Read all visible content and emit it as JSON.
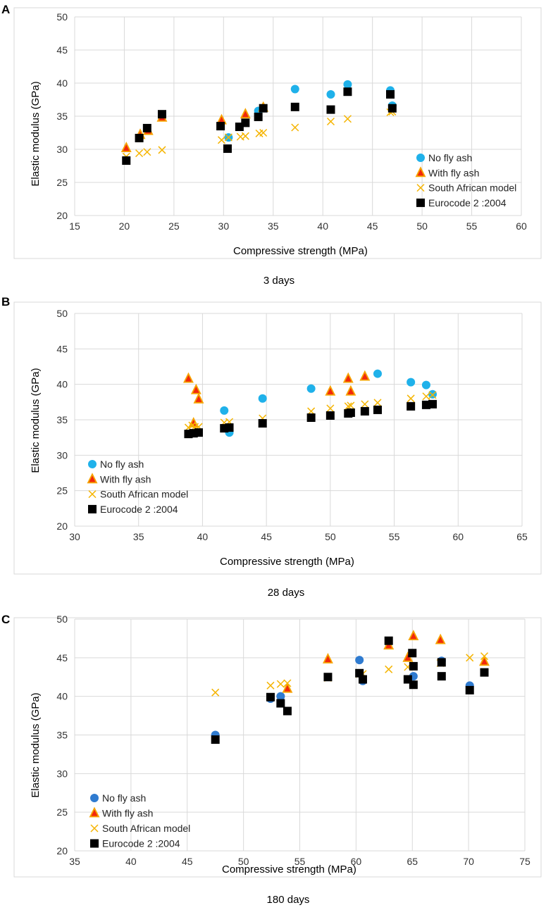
{
  "colors": {
    "no_fly_ash_A": "#1fb1ea",
    "no_fly_ash_B": "#1fb1ea",
    "no_fly_ash_C": "#2f7bd0",
    "with_fly_ash_fill": "#f2280c",
    "with_fly_ash_edge": "#f6a400",
    "south_african": "#f5b400",
    "eurocode": "#000000",
    "grid": "#d9d9d9",
    "frame": "#d9d9d9"
  },
  "chart_data": [
    {
      "panel_letter": "A",
      "type": "scatter",
      "caption": "3 days",
      "xlabel": "Compressive strength (MPa)",
      "ylabel": "Elastic modulus (GPa)",
      "xlim": [
        15,
        60
      ],
      "ylim": [
        20,
        50
      ],
      "xticks": [
        "15",
        "20",
        "25",
        "30",
        "35",
        "40",
        "45",
        "50",
        "55",
        "60"
      ],
      "yticks": [
        "20",
        "25",
        "30",
        "35",
        "40",
        "45",
        "50"
      ],
      "grid": true,
      "legend_position": "bottom-right",
      "series": [
        {
          "name": "No fly ash",
          "marker": "circle",
          "points": [
            [
              30.5,
              31.8
            ],
            [
              33.5,
              35.8
            ],
            [
              37.2,
              39.1
            ],
            [
              40.8,
              38.3
            ],
            [
              42.5,
              39.8
            ],
            [
              46.8,
              38.9
            ],
            [
              47.0,
              36.6
            ]
          ]
        },
        {
          "name": "With fly ash",
          "marker": "triangle",
          "points": [
            [
              20.2,
              30.2
            ],
            [
              21.6,
              32.2
            ],
            [
              22.4,
              32.8
            ],
            [
              23.8,
              34.8
            ],
            [
              29.8,
              34.4
            ],
            [
              32.2,
              35.3
            ],
            [
              34.0,
              36.3
            ]
          ]
        },
        {
          "name": "South African model",
          "marker": "x",
          "points": [
            [
              20.2,
              28.9
            ],
            [
              21.5,
              29.4
            ],
            [
              22.3,
              29.6
            ],
            [
              23.8,
              29.9
            ],
            [
              29.8,
              31.4
            ],
            [
              30.5,
              31.8
            ],
            [
              31.7,
              31.9
            ],
            [
              32.2,
              32.0
            ],
            [
              33.6,
              32.4
            ],
            [
              34.0,
              32.5
            ],
            [
              37.2,
              33.3
            ],
            [
              40.8,
              34.2
            ],
            [
              42.5,
              34.6
            ],
            [
              46.8,
              35.6
            ],
            [
              47.0,
              35.7
            ]
          ]
        },
        {
          "name": "Eurocode 2 :2004",
          "marker": "square",
          "points": [
            [
              20.2,
              28.3
            ],
            [
              21.5,
              31.7
            ],
            [
              22.3,
              33.2
            ],
            [
              23.8,
              35.3
            ],
            [
              29.7,
              33.5
            ],
            [
              30.4,
              30.1
            ],
            [
              31.6,
              33.4
            ],
            [
              32.2,
              34.0
            ],
            [
              33.5,
              34.9
            ],
            [
              34.0,
              36.2
            ],
            [
              37.2,
              36.4
            ],
            [
              40.8,
              36.0
            ],
            [
              42.5,
              38.7
            ],
            [
              46.8,
              38.3
            ],
            [
              47.0,
              36.2
            ]
          ]
        }
      ]
    },
    {
      "panel_letter": "B",
      "type": "scatter",
      "caption": "28 days",
      "xlabel": "Compressive strength (MPa)",
      "ylabel": "Elastic modulus (GPa)",
      "xlim": [
        30,
        65
      ],
      "ylim": [
        20,
        50
      ],
      "xticks": [
        "30",
        "35",
        "40",
        "45",
        "50",
        "55",
        "60",
        "65"
      ],
      "yticks": [
        "20",
        "25",
        "30",
        "35",
        "40",
        "45",
        "50"
      ],
      "grid": true,
      "legend_position": "bottom-left",
      "series": [
        {
          "name": "No fly ash",
          "marker": "circle",
          "points": [
            [
              41.7,
              36.3
            ],
            [
              42.1,
              33.2
            ],
            [
              44.7,
              38.0
            ],
            [
              48.5,
              39.4
            ],
            [
              53.7,
              41.5
            ],
            [
              56.3,
              40.3
            ],
            [
              57.5,
              39.9
            ],
            [
              58.0,
              38.6
            ]
          ]
        },
        {
          "name": "With fly ash",
          "marker": "triangle",
          "points": [
            [
              38.9,
              40.8
            ],
            [
              39.3,
              34.5
            ],
            [
              39.5,
              39.2
            ],
            [
              39.7,
              37.9
            ],
            [
              50.0,
              39.0
            ],
            [
              51.4,
              40.8
            ],
            [
              51.6,
              39.0
            ],
            [
              52.7,
              41.1
            ]
          ]
        },
        {
          "name": "South African model",
          "marker": "x",
          "points": [
            [
              38.9,
              33.9
            ],
            [
              39.2,
              34.2
            ],
            [
              39.4,
              34.0
            ],
            [
              39.7,
              34.0
            ],
            [
              41.7,
              34.6
            ],
            [
              42.1,
              34.7
            ],
            [
              44.7,
              35.2
            ],
            [
              48.5,
              36.2
            ],
            [
              50.0,
              36.6
            ],
            [
              51.4,
              36.9
            ],
            [
              51.6,
              37.0
            ],
            [
              52.7,
              37.2
            ],
            [
              53.7,
              37.4
            ],
            [
              56.3,
              38.0
            ],
            [
              57.5,
              38.3
            ],
            [
              58.0,
              38.5
            ]
          ]
        },
        {
          "name": "Eurocode 2 :2004",
          "marker": "square",
          "points": [
            [
              38.9,
              33.0
            ],
            [
              39.3,
              33.1
            ],
            [
              39.7,
              33.2
            ],
            [
              41.7,
              33.8
            ],
            [
              42.1,
              33.9
            ],
            [
              44.7,
              34.5
            ],
            [
              48.5,
              35.3
            ],
            [
              50.0,
              35.6
            ],
            [
              51.4,
              35.9
            ],
            [
              51.6,
              36.0
            ],
            [
              52.7,
              36.2
            ],
            [
              53.7,
              36.4
            ],
            [
              56.3,
              36.9
            ],
            [
              57.5,
              37.1
            ],
            [
              58.0,
              37.2
            ]
          ]
        }
      ]
    },
    {
      "panel_letter": "C",
      "type": "scatter",
      "caption": "180 days",
      "xlabel": "Compressive strength (MPa)",
      "ylabel": "Elastic modulus (GPa)",
      "xlim": [
        35,
        75
      ],
      "ylim": [
        20,
        50
      ],
      "xticks": [
        "35",
        "40",
        "45",
        "50",
        "55",
        "60",
        "65",
        "70",
        "75"
      ],
      "yticks": [
        "20",
        "25",
        "30",
        "35",
        "40",
        "45",
        "50"
      ],
      "grid": true,
      "legend_position": "bottom-left",
      "series": [
        {
          "name": "No fly ash",
          "marker": "circle",
          "points": [
            [
              47.5,
              35.0
            ],
            [
              52.4,
              39.7
            ],
            [
              53.3,
              40.0
            ],
            [
              60.3,
              44.7
            ],
            [
              60.6,
              42.0
            ],
            [
              65.1,
              42.6
            ],
            [
              67.6,
              44.6
            ],
            [
              70.1,
              41.4
            ]
          ]
        },
        {
          "name": "With fly ash",
          "marker": "triangle",
          "points": [
            [
              53.9,
              41.0
            ],
            [
              57.5,
              44.8
            ],
            [
              62.9,
              46.6
            ],
            [
              64.6,
              45.0
            ],
            [
              65.1,
              47.8
            ],
            [
              67.5,
              47.3
            ],
            [
              71.4,
              44.5
            ]
          ]
        },
        {
          "name": "South African model",
          "marker": "x",
          "points": [
            [
              47.5,
              40.5
            ],
            [
              52.4,
              41.4
            ],
            [
              53.3,
              41.6
            ],
            [
              53.9,
              41.7
            ],
            [
              57.5,
              42.4
            ],
            [
              60.3,
              42.9
            ],
            [
              60.6,
              42.9
            ],
            [
              62.9,
              43.5
            ],
            [
              64.6,
              43.8
            ],
            [
              65.1,
              43.9
            ],
            [
              67.5,
              44.3
            ],
            [
              70.1,
              45.0
            ],
            [
              71.4,
              45.2
            ]
          ]
        },
        {
          "name": "Eurocode 2 :2004",
          "marker": "square",
          "points": [
            [
              47.5,
              34.4
            ],
            [
              52.4,
              39.9
            ],
            [
              53.3,
              39.1
            ],
            [
              53.9,
              38.1
            ],
            [
              57.5,
              42.5
            ],
            [
              60.3,
              43.0
            ],
            [
              60.6,
              42.2
            ],
            [
              62.9,
              47.2
            ],
            [
              64.6,
              42.2
            ],
            [
              65.0,
              45.6
            ],
            [
              65.1,
              43.9
            ],
            [
              65.1,
              41.5
            ],
            [
              67.6,
              44.4
            ],
            [
              67.6,
              42.6
            ],
            [
              70.1,
              40.8
            ],
            [
              71.4,
              43.1
            ]
          ]
        }
      ]
    }
  ]
}
